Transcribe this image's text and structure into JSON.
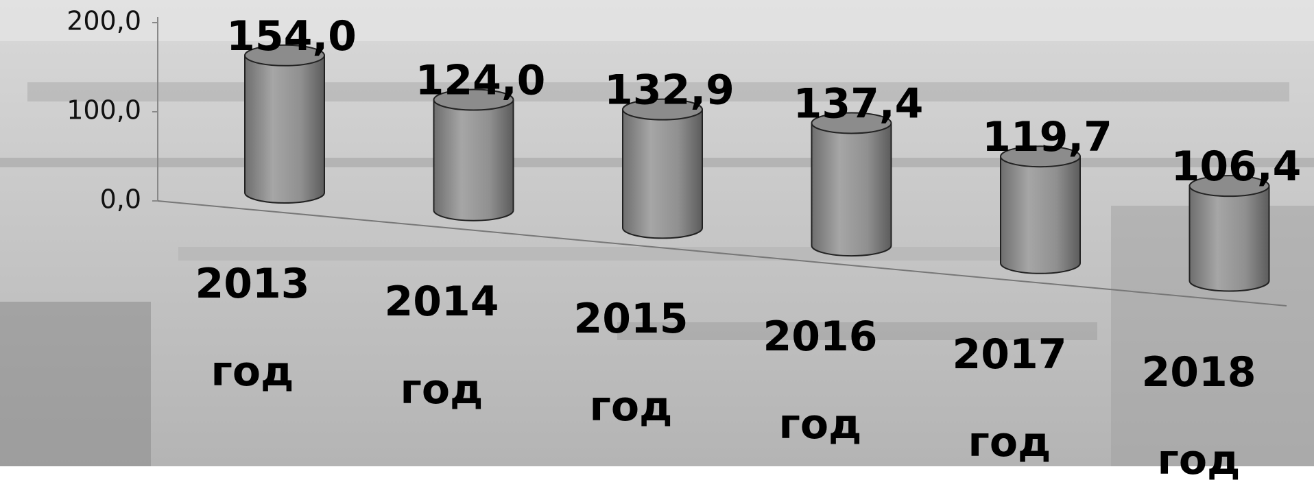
{
  "chart_data": {
    "type": "cylinder",
    "categories": [
      "2013 год",
      "2014 год",
      "2015 год",
      "2016 год",
      "2017 год",
      "2018 год"
    ],
    "values": [
      154.0,
      124.0,
      132.9,
      137.4,
      119.7,
      106.4
    ],
    "value_labels": [
      "154,0",
      "124,0",
      "132,9",
      "137,4",
      "119,7",
      "106,4"
    ],
    "color": "#8c8c8c",
    "ylim": [
      0,
      200
    ],
    "yticks": [
      {
        "value": 0,
        "label": "0,0"
      },
      {
        "value": 100,
        "label": "100,0"
      },
      {
        "value": 200,
        "label": "200,0"
      }
    ]
  }
}
